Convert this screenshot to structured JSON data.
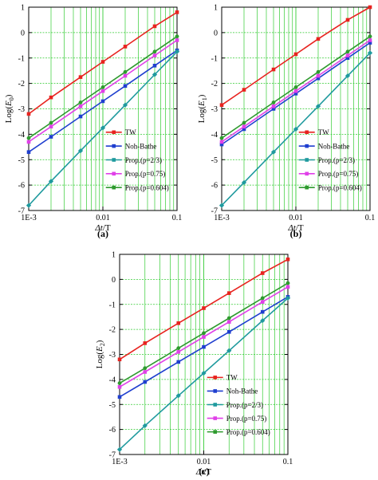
{
  "series_colors": [
    "#e8231f",
    "#1f3fcf",
    "#1f9a9e",
    "#e040e8",
    "#2e9a2e"
  ],
  "grid_color": "#33cc33",
  "chart_data": [
    {
      "type": "line",
      "panel_label": "(a)",
      "ylabel_main": "Log(",
      "ylabel_var": "E",
      "ylabel_sub": "0",
      "ylabel_end": ")",
      "xlabel_main": "Δt",
      "xlabel_rest": "/T",
      "x_scale": "log",
      "xlim": [
        0.001,
        0.1
      ],
      "ylim": [
        -7,
        1
      ],
      "xticks": [
        0.001,
        0.01,
        0.1
      ],
      "xtick_labels": [
        "1E-3",
        "0.01",
        "0.1"
      ],
      "yticks": [
        -7,
        -6,
        -5,
        -4,
        -3,
        -2,
        -1,
        0,
        1
      ],
      "ytick_labels": [
        "-7",
        "-6",
        "-5",
        "-4",
        "-3",
        "-2",
        "-1",
        "0",
        "1"
      ],
      "grid": true,
      "legend_position": "bottom-right",
      "x": [
        0.001,
        0.002,
        0.005,
        0.01,
        0.02,
        0.05,
        0.1
      ],
      "series": [
        {
          "name": "TW",
          "values": [
            -3.2,
            -2.55,
            -1.75,
            -1.15,
            -0.55,
            0.25,
            0.8
          ]
        },
        {
          "name": "Noh-Bathe",
          "values": [
            -4.7,
            -4.1,
            -3.3,
            -2.7,
            -2.1,
            -1.3,
            -0.7
          ]
        },
        {
          "name": "Prop.(p=2/3)",
          "values": [
            -6.8,
            -5.85,
            -4.65,
            -3.75,
            -2.85,
            -1.65,
            -0.75
          ]
        },
        {
          "name": "Prop.(p=0.75)",
          "values": [
            -4.3,
            -3.7,
            -2.9,
            -2.3,
            -1.7,
            -0.9,
            -0.3
          ]
        },
        {
          "name": "Prop.(p=0.604)",
          "values": [
            -4.15,
            -3.55,
            -2.75,
            -2.15,
            -1.55,
            -0.75,
            -0.15
          ]
        }
      ]
    },
    {
      "type": "line",
      "panel_label": "(b)",
      "ylabel_main": "Log(",
      "ylabel_var": "E",
      "ylabel_sub": "1",
      "ylabel_end": ")",
      "xlabel_main": "Δt",
      "xlabel_rest": "/T",
      "x_scale": "log",
      "xlim": [
        0.001,
        0.1
      ],
      "ylim": [
        -7,
        1
      ],
      "xticks": [
        0.001,
        0.01,
        0.1
      ],
      "xtick_labels": [
        "1E-3",
        "0.01",
        "0.1"
      ],
      "yticks": [
        -7,
        -6,
        -5,
        -4,
        -3,
        -2,
        -1,
        0,
        1
      ],
      "ytick_labels": [
        "-7",
        "-6",
        "-5",
        "-4",
        "-3",
        "-2",
        "-1",
        "0",
        "1"
      ],
      "grid": true,
      "legend_position": "bottom-right",
      "x": [
        0.001,
        0.002,
        0.005,
        0.01,
        0.02,
        0.05,
        0.1
      ],
      "series": [
        {
          "name": "TW",
          "values": [
            -2.85,
            -2.25,
            -1.45,
            -0.85,
            -0.25,
            0.5,
            1.0
          ]
        },
        {
          "name": "Noh-Bathe",
          "values": [
            -4.4,
            -3.8,
            -3.0,
            -2.4,
            -1.8,
            -1.0,
            -0.4
          ]
        },
        {
          "name": "Prop.(p=2/3)",
          "values": [
            -6.8,
            -5.9,
            -4.7,
            -3.8,
            -2.9,
            -1.7,
            -0.8
          ]
        },
        {
          "name": "Prop.(p=0.75)",
          "values": [
            -4.3,
            -3.7,
            -2.9,
            -2.3,
            -1.7,
            -0.9,
            -0.3
          ]
        },
        {
          "name": "Prop.(p=0.604)",
          "values": [
            -4.15,
            -3.55,
            -2.75,
            -2.15,
            -1.55,
            -0.75,
            -0.15
          ]
        }
      ]
    },
    {
      "type": "line",
      "panel_label": "(c)",
      "ylabel_main": "Log(",
      "ylabel_var": "E",
      "ylabel_sub": "2",
      "ylabel_end": ")",
      "xlabel_main": "Δt",
      "xlabel_rest": "/T",
      "x_scale": "log",
      "xlim": [
        0.001,
        0.1
      ],
      "ylim": [
        -7,
        1
      ],
      "xticks": [
        0.001,
        0.01,
        0.1
      ],
      "xtick_labels": [
        "1E-3",
        "0.01",
        "0.1"
      ],
      "yticks": [
        -7,
        -6,
        -5,
        -4,
        -3,
        -2,
        -1,
        0,
        1
      ],
      "ytick_labels": [
        "-7",
        "-6",
        "-5",
        "-4",
        "-3",
        "-2",
        "-1",
        "0",
        "1"
      ],
      "grid": true,
      "legend_position": "bottom-right",
      "x": [
        0.001,
        0.002,
        0.005,
        0.01,
        0.02,
        0.05,
        0.1
      ],
      "series": [
        {
          "name": "TW",
          "values": [
            -3.2,
            -2.55,
            -1.75,
            -1.15,
            -0.55,
            0.25,
            0.8
          ]
        },
        {
          "name": "Noh-Bathe",
          "values": [
            -4.7,
            -4.1,
            -3.3,
            -2.7,
            -2.1,
            -1.3,
            -0.7
          ]
        },
        {
          "name": "Prop.(p=2/3)",
          "values": [
            -6.8,
            -5.85,
            -4.65,
            -3.75,
            -2.85,
            -1.65,
            -0.75
          ]
        },
        {
          "name": "Prop.(p=0.75)",
          "values": [
            -4.3,
            -3.7,
            -2.9,
            -2.3,
            -1.7,
            -0.9,
            -0.3
          ]
        },
        {
          "name": "Prop.(p=0.604)",
          "values": [
            -4.15,
            -3.55,
            -2.75,
            -2.15,
            -1.55,
            -0.75,
            -0.15
          ]
        }
      ]
    }
  ]
}
